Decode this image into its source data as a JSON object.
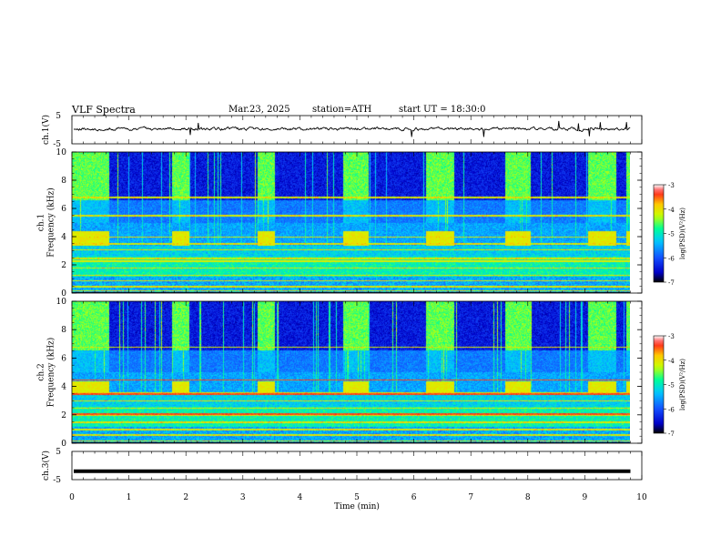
{
  "header": {
    "title": "VLF  Spectra",
    "date": "Mar.23, 2025",
    "station": "station=ATH",
    "start": "start  UT  =   18:30:0"
  },
  "colors": {
    "background": "#ffffff",
    "spectrogram_colormap": [
      "#000000",
      "#0000c8",
      "#1450ff",
      "#00c8ff",
      "#00ff96",
      "#c8ff00",
      "#ffc800",
      "#ff1e1e",
      "#ffffff"
    ]
  },
  "chart_data": [
    {
      "type": "line",
      "name": "ch1-waveform",
      "ylabel": "ch.1(V)",
      "yticks": [
        "5",
        "-5"
      ],
      "ylim": [
        -5,
        5
      ],
      "xlim": [
        0,
        10
      ],
      "approx_level_V": 0.3,
      "noise_amplitude_V": 1.2
    },
    {
      "type": "heatmap",
      "name": "ch1-spectrogram",
      "ylabel": "ch.1\nFrequency (kHz)",
      "yticks": [
        "0",
        "2",
        "4",
        "6",
        "8",
        "10"
      ],
      "ylim": [
        0,
        10
      ],
      "xlim": [
        0,
        10
      ],
      "colorbar": {
        "label": "log(PSD)(V²/Hz)",
        "ticks": [
          "-3",
          "-4",
          "-5",
          "-6",
          "-7"
        ],
        "range": [
          -7,
          -3
        ]
      },
      "transmitter_on_intervals_min": [
        [
          0,
          0.65
        ],
        [
          1.75,
          2.05
        ],
        [
          3.25,
          3.55
        ],
        [
          4.75,
          5.2
        ],
        [
          6.2,
          6.7
        ],
        [
          7.6,
          8.05
        ],
        [
          9.05,
          9.55
        ],
        [
          9.72,
          9.8
        ]
      ],
      "tone_lines_kHz": [
        0.2,
        0.5,
        0.9,
        1.3,
        1.8,
        2.3,
        2.5,
        3.1,
        3.5,
        4.0,
        5.5,
        6.8
      ]
    },
    {
      "type": "heatmap",
      "name": "ch2-spectrogram",
      "ylabel": "ch.2\nFrequency (kHz)",
      "yticks": [
        "0",
        "2",
        "4",
        "6",
        "8",
        "10"
      ],
      "ylim": [
        0,
        10
      ],
      "xlim": [
        0,
        10
      ],
      "colorbar": {
        "label": "log(PSD)(V²/Hz)",
        "ticks": [
          "-3",
          "-4",
          "-5",
          "-6",
          "-7"
        ],
        "range": [
          -7,
          -3
        ]
      },
      "transmitter_on_intervals_min": [
        [
          0,
          0.65
        ],
        [
          1.75,
          2.05
        ],
        [
          3.25,
          3.55
        ],
        [
          4.75,
          5.2
        ],
        [
          6.2,
          6.7
        ],
        [
          7.6,
          8.05
        ],
        [
          9.05,
          9.55
        ],
        [
          9.72,
          9.8
        ]
      ],
      "tone_lines_kHz": [
        0.2,
        0.6,
        1.0,
        1.5,
        2.0,
        2.1,
        2.5,
        3.0,
        3.5,
        3.6,
        4.5,
        6.8
      ]
    },
    {
      "type": "line",
      "name": "ch3-waveform",
      "ylabel": "ch.3(V)",
      "yticks": [
        "5",
        "-5"
      ],
      "ylim": [
        -5,
        5
      ],
      "xlim": [
        0,
        10
      ],
      "approx_level_V": -2.0
    }
  ],
  "xaxis": {
    "label": "Time  (min)",
    "ticks": [
      "0",
      "1",
      "2",
      "3",
      "4",
      "5",
      "6",
      "7",
      "8",
      "9",
      "10"
    ],
    "data_end_min": 9.8
  }
}
